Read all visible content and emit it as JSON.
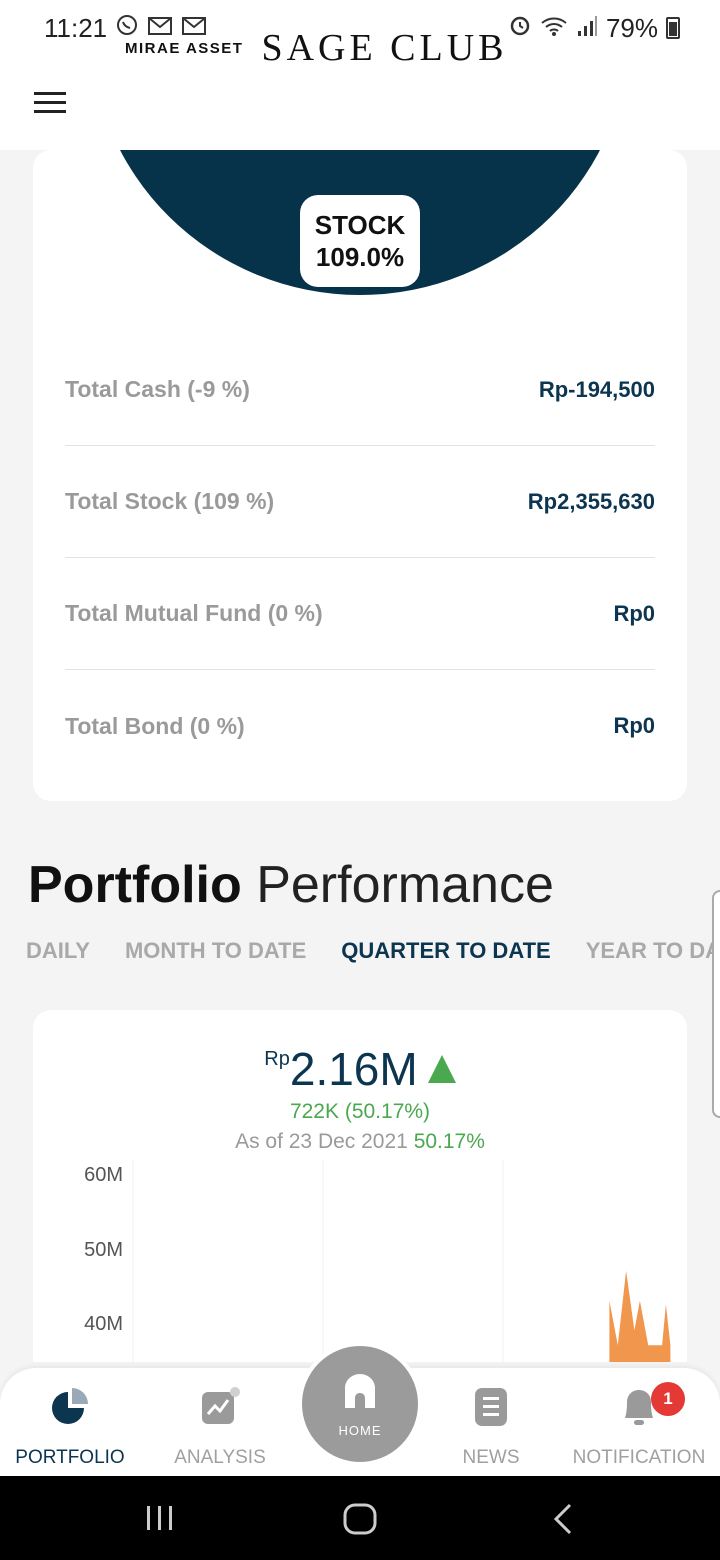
{
  "status_bar": {
    "time": "11:21",
    "battery_percent": "79%",
    "left_icons": [
      "whatsapp-icon",
      "gmail-icon",
      "gmail-icon"
    ],
    "right_icons": [
      "alarm-icon",
      "wifi-icon",
      "signal-icon",
      "battery-icon"
    ]
  },
  "header": {
    "brand_small": "MIRAE ASSET",
    "brand_big": "SAGE CLUB"
  },
  "allocation_chart": {
    "label_title": "STOCK",
    "label_value": "109.0%",
    "colors": {
      "stock": "#06324a",
      "other": "#e6e9ec"
    }
  },
  "allocation": {
    "rows": [
      {
        "label": "Total Cash (-9 %)",
        "value": "Rp-194,500"
      },
      {
        "label": "Total Stock (109 %)",
        "value": "Rp2,355,630"
      },
      {
        "label": "Total Mutual Fund (0 %)",
        "value": "Rp0"
      },
      {
        "label": "Total Bond (0 %)",
        "value": "Rp0"
      }
    ]
  },
  "performance": {
    "title_bold": "Portfolio",
    "title_light": "Performance",
    "tabs": [
      "DAILY",
      "MONTH TO DATE",
      "QUARTER TO DATE",
      "YEAR TO DAT"
    ],
    "active_tab": "QUARTER TO DATE",
    "currency": "Rp",
    "amount": "2.16M",
    "change": "722K (50.17%)",
    "as_of_text": "As of 23 Dec 2021",
    "as_of_pct": "50.17%"
  },
  "chart_data": {
    "type": "area",
    "y_ticks": [
      "60M",
      "50M",
      "40M"
    ],
    "ylim_visible": [
      37000000,
      60000000
    ],
    "series": [
      {
        "color": "#f0964d",
        "points": [
          {
            "x": 0.0,
            "y": 0
          },
          {
            "x": 0.84,
            "y": 0
          },
          {
            "x": 0.86,
            "y": 43000000
          },
          {
            "x": 0.875,
            "y": 37000000
          },
          {
            "x": 0.89,
            "y": 47000000
          },
          {
            "x": 0.905,
            "y": 39000000
          },
          {
            "x": 0.915,
            "y": 43000000
          },
          {
            "x": 0.93,
            "y": 37000000
          },
          {
            "x": 0.955,
            "y": 37000000
          },
          {
            "x": 0.962,
            "y": 42500000
          },
          {
            "x": 0.97,
            "y": 37000000
          }
        ]
      }
    ],
    "grid": true
  },
  "bottom_nav": {
    "items": [
      {
        "label": "PORTFOLIO",
        "icon": "pie-chart-icon",
        "active": true
      },
      {
        "label": "ANALYSIS",
        "icon": "analysis-chart-icon",
        "active": false
      },
      {
        "label": "NEWS",
        "icon": "news-icon",
        "active": false
      },
      {
        "label": "NOTIFICATION",
        "icon": "bell-icon",
        "active": false
      }
    ],
    "home_label": "HOME",
    "notification_count": "1"
  }
}
